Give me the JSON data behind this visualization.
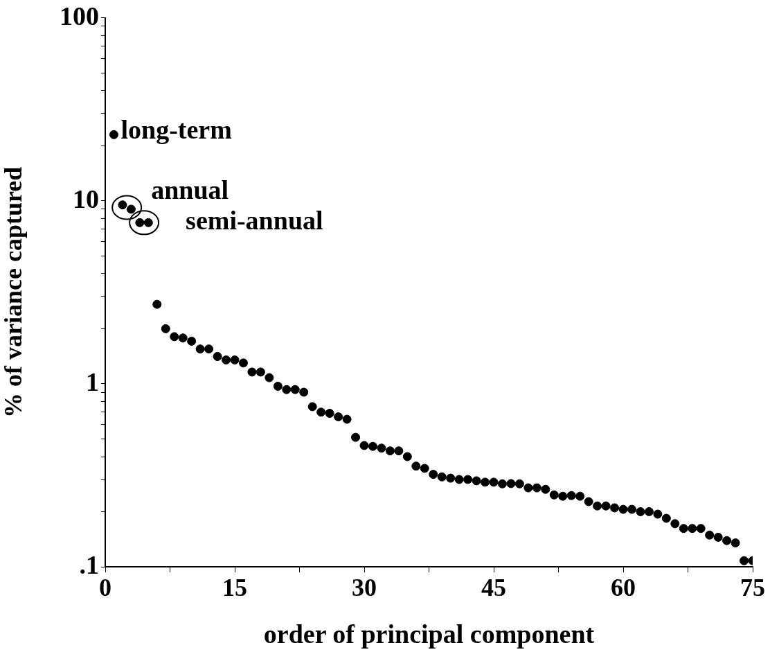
{
  "chart_data": {
    "type": "scatter",
    "xlabel": "order of principal component",
    "ylabel": "% of variance captured",
    "log": "y",
    "grid": false,
    "legend": false,
    "marker": "circle",
    "xlim": [
      0,
      75
    ],
    "xticks": [
      0,
      {
        "value": 7.5,
        "label": null
      },
      15,
      {
        "value": 22.5,
        "label": null
      },
      30,
      {
        "value": 37.5,
        "label": null
      },
      45,
      {
        "value": 52.5,
        "label": null
      },
      60,
      {
        "value": 67.5,
        "label": null
      },
      75
    ],
    "ylim": [
      0.1,
      100
    ],
    "yticks": [
      {
        "value": 0.1,
        "label": ".1"
      },
      {
        "value": 0.2,
        "label": null
      },
      {
        "value": 0.3,
        "label": null
      },
      {
        "value": 0.4,
        "label": null
      },
      {
        "value": 0.5,
        "label": null
      },
      {
        "value": 0.6,
        "label": null
      },
      {
        "value": 0.7,
        "label": null
      },
      {
        "value": 0.8,
        "label": null
      },
      {
        "value": 0.9,
        "label": null
      },
      1,
      {
        "value": 2,
        "label": null
      },
      {
        "value": 3,
        "label": null
      },
      {
        "value": 4,
        "label": null
      },
      {
        "value": 5,
        "label": null
      },
      {
        "value": 6,
        "label": null
      },
      {
        "value": 7,
        "label": null
      },
      {
        "value": 8,
        "label": null
      },
      {
        "value": 9,
        "label": null
      },
      10,
      {
        "value": 20,
        "label": null
      },
      {
        "value": 30,
        "label": null
      },
      {
        "value": 40,
        "label": null
      },
      {
        "value": 50,
        "label": null
      },
      {
        "value": 60,
        "label": null
      },
      {
        "value": 70,
        "label": null
      },
      {
        "value": 80,
        "label": null
      },
      {
        "value": 90,
        "label": null
      },
      100
    ],
    "annotations": [
      {
        "text": "long-term",
        "x": 1,
        "y": 23
      },
      {
        "text": "annual",
        "x": 2.5,
        "y": 9.2
      },
      {
        "text": "semi-annual",
        "x": 4.5,
        "y": 7.6
      }
    ],
    "series": [
      {
        "color": "#000000",
        "x": [
          1,
          2,
          3,
          4,
          5,
          6,
          7,
          8,
          9,
          10,
          11,
          12,
          13,
          14,
          15,
          16,
          17,
          18,
          19,
          20,
          21,
          22,
          23,
          24,
          25,
          26,
          27,
          28,
          29,
          30,
          31,
          32,
          33,
          34,
          35,
          36,
          37,
          38,
          39,
          40,
          41,
          42,
          43,
          44,
          45,
          46,
          47,
          48,
          49,
          50,
          51,
          52,
          53,
          54,
          55,
          56,
          57,
          58,
          59,
          60,
          61,
          62,
          63,
          64,
          65,
          66,
          67,
          68,
          69,
          70,
          71,
          72,
          73,
          74,
          75
        ],
        "values": [
          23,
          9.5,
          9.0,
          7.6,
          7.6,
          2.72,
          2.0,
          1.81,
          1.78,
          1.71,
          1.55,
          1.55,
          1.41,
          1.35,
          1.35,
          1.3,
          1.16,
          1.16,
          1.08,
          0.97,
          0.93,
          0.93,
          0.9,
          0.75,
          0.7,
          0.69,
          0.66,
          0.64,
          0.51,
          0.46,
          0.455,
          0.445,
          0.43,
          0.43,
          0.4,
          0.355,
          0.345,
          0.32,
          0.31,
          0.305,
          0.3,
          0.3,
          0.295,
          0.29,
          0.29,
          0.284,
          0.285,
          0.284,
          0.27,
          0.27,
          0.265,
          0.247,
          0.243,
          0.245,
          0.243,
          0.227,
          0.215,
          0.215,
          0.21,
          0.206,
          0.206,
          0.2,
          0.2,
          0.194,
          0.184,
          0.172,
          0.162,
          0.162,
          0.162,
          0.149,
          0.145,
          0.139,
          0.135,
          0.108,
          0.108
        ]
      }
    ]
  }
}
